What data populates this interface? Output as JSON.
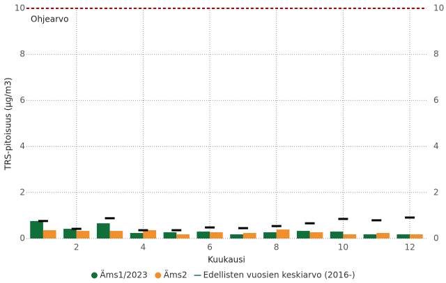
{
  "chart_data": {
    "type": "bar",
    "x_label": "Kuukausi",
    "y_label": "TRS-pitoisuus (µg/m3)",
    "x": [
      1,
      2,
      3,
      4,
      5,
      6,
      7,
      8,
      9,
      10,
      11,
      12
    ],
    "xlim": [
      0.5,
      12.5
    ],
    "xticks": [
      2,
      4,
      6,
      8,
      10,
      12
    ],
    "ylim": [
      0,
      10
    ],
    "yticks": [
      0,
      2,
      4,
      6,
      8,
      10
    ],
    "y2lim": [
      0,
      10
    ],
    "y2ticks": [
      0,
      2,
      4,
      6,
      8,
      10
    ],
    "grid": true,
    "legend": "bottom",
    "reference_line": {
      "value": 10,
      "label": "Ohjearvo",
      "color": "#c00000"
    },
    "series": [
      {
        "name": "Äms1/2023",
        "color": "#11703a",
        "style": "bar",
        "values": [
          0.76,
          0.42,
          0.66,
          0.24,
          0.27,
          0.3,
          0.18,
          0.27,
          0.33,
          0.3,
          0.18,
          0.18
        ]
      },
      {
        "name": "Äms2",
        "color": "#f28e2b",
        "style": "bar",
        "values": [
          0.36,
          0.33,
          0.33,
          0.36,
          0.18,
          0.27,
          0.24,
          0.39,
          0.27,
          0.18,
          0.24,
          0.18
        ]
      },
      {
        "name": "Edellisten vuosien keskiarvo (2016-)",
        "color": "#000000",
        "style": "dash",
        "values": [
          0.76,
          0.42,
          0.88,
          0.36,
          0.36,
          0.48,
          0.45,
          0.54,
          0.66,
          0.85,
          0.79,
          0.91
        ]
      }
    ]
  }
}
